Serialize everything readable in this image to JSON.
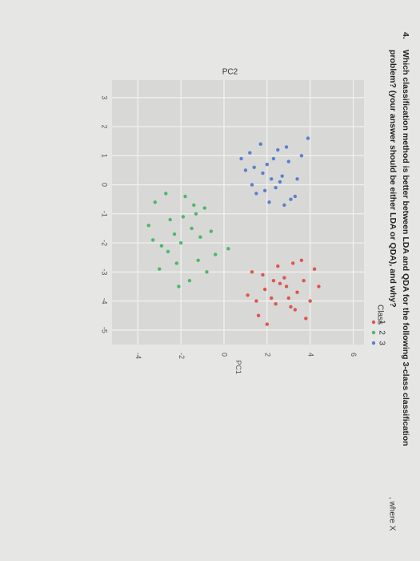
{
  "question": {
    "number": "4.",
    "line1": "Which classification method is better between LDA and QDA for the following 3-class classification",
    "line2": "problem? (your answer should be either LDA or QDA), and why?",
    "footer": ", where X"
  },
  "chart_data": {
    "type": "scatter",
    "x_label": "PC1",
    "y_label": "PC2",
    "xlim": [
      -5.2,
      6.5
    ],
    "ylim": [
      -5.5,
      3.6
    ],
    "xticks": [
      -4,
      -2,
      0,
      2,
      4,
      6
    ],
    "yticks": [
      -5,
      -4,
      -3,
      -2,
      -1,
      0,
      1,
      2,
      3
    ],
    "grid": true,
    "legend_title": "Class",
    "legend": "bottom-right",
    "series": [
      {
        "name": "1",
        "color": "#e0544f",
        "x": [
          1.3,
          1.9,
          2.5,
          3.1,
          3.7,
          4.2,
          1.6,
          2.2,
          2.8,
          3.4,
          4.0,
          1.1,
          2.0,
          2.6,
          3.2,
          3.8,
          4.4,
          1.8,
          2.4,
          3.0,
          3.6,
          2.3,
          3.3,
          1.5,
          2.9
        ],
        "values": [
          -3.0,
          -3.6,
          -2.8,
          -4.2,
          -3.3,
          -2.9,
          -4.5,
          -3.9,
          -3.2,
          -3.7,
          -4.0,
          -3.8,
          -4.8,
          -3.4,
          -2.7,
          -4.6,
          -3.5,
          -3.1,
          -4.1,
          -3.9,
          -2.6,
          -3.3,
          -4.3,
          -4.0,
          -3.5
        ]
      },
      {
        "name": "2",
        "color": "#4cb86a",
        "x": [
          -3.2,
          -2.5,
          -1.8,
          -1.1,
          -0.4,
          -2.9,
          -2.2,
          -1.5,
          -0.8,
          -3.5,
          -2.7,
          -2.0,
          -1.3,
          -0.6,
          -3.0,
          -2.3,
          -1.6,
          -0.9,
          -2.6,
          -1.9,
          -1.2,
          -3.3,
          -2.1,
          -1.4,
          0.2
        ],
        "values": [
          -0.6,
          -1.2,
          -0.4,
          -1.8,
          -2.4,
          -2.1,
          -2.7,
          -1.5,
          -3.0,
          -1.4,
          -0.3,
          -2.0,
          -1.0,
          -1.6,
          -2.9,
          -1.7,
          -3.3,
          -0.8,
          -2.3,
          -1.1,
          -2.6,
          -1.9,
          -3.5,
          -0.7,
          -2.2
        ]
      },
      {
        "name": "3",
        "color": "#5b7fd0",
        "x": [
          1.2,
          1.8,
          2.3,
          2.9,
          3.4,
          1.5,
          2.0,
          2.6,
          3.1,
          1.0,
          1.7,
          2.4,
          3.0,
          3.6,
          1.3,
          2.1,
          2.7,
          0.8,
          1.9,
          2.5,
          3.3,
          1.4,
          2.2,
          2.8,
          3.9
        ],
        "values": [
          1.1,
          0.4,
          0.9,
          1.3,
          0.2,
          -0.3,
          0.7,
          0.1,
          -0.5,
          0.5,
          1.4,
          -0.1,
          0.8,
          1.0,
          0.0,
          -0.6,
          0.3,
          0.9,
          -0.2,
          1.2,
          -0.4,
          0.6,
          0.2,
          -0.7,
          1.6
        ]
      }
    ]
  }
}
